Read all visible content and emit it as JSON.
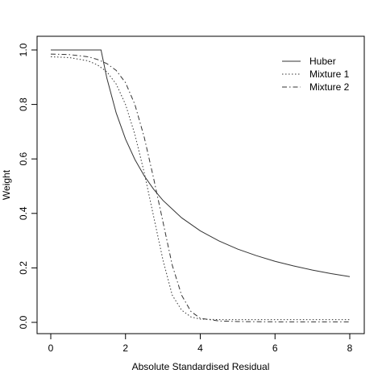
{
  "chart_data": {
    "type": "line",
    "title": "",
    "xlabel": "Absolute Standardised Residual",
    "ylabel": "Weight",
    "xlim": [
      0,
      8
    ],
    "ylim": [
      0,
      1.0
    ],
    "x_ticks": [
      0,
      2,
      4,
      6,
      8
    ],
    "x_tick_labels": [
      "0",
      "2",
      "4",
      "6",
      "8"
    ],
    "y_ticks": [
      0.0,
      0.2,
      0.4,
      0.6,
      0.8,
      1.0
    ],
    "y_tick_labels": [
      "0.0",
      "0.2",
      "0.4",
      "0.6",
      "0.8",
      "1.0"
    ],
    "grid": false,
    "legend_position": "top-right",
    "series": [
      {
        "name": "Huber",
        "color": "#333333",
        "dash": "solid",
        "x": [
          0,
          0.5,
          1.0,
          1.345,
          1.5,
          1.75,
          2.0,
          2.25,
          2.5,
          2.75,
          3.0,
          3.5,
          4.0,
          4.5,
          5.0,
          5.5,
          6.0,
          6.5,
          7.0,
          7.5,
          8.0
        ],
        "y": [
          1.0,
          1.0,
          1.0,
          1.0,
          0.897,
          0.769,
          0.673,
          0.598,
          0.538,
          0.489,
          0.448,
          0.384,
          0.336,
          0.299,
          0.269,
          0.245,
          0.224,
          0.207,
          0.192,
          0.179,
          0.168
        ]
      },
      {
        "name": "Mixture 1",
        "color": "#333333",
        "dash": "dotted",
        "x": [
          0,
          0.5,
          1.0,
          1.25,
          1.5,
          1.75,
          2.0,
          2.25,
          2.5,
          2.75,
          3.0,
          3.25,
          3.5,
          3.75,
          4.0,
          4.5,
          5.0,
          6.0,
          7.0,
          8.0
        ],
        "y": [
          0.975,
          0.972,
          0.96,
          0.945,
          0.92,
          0.875,
          0.8,
          0.69,
          0.55,
          0.39,
          0.23,
          0.1,
          0.045,
          0.02,
          0.012,
          0.01,
          0.01,
          0.01,
          0.01,
          0.01
        ]
      },
      {
        "name": "Mixture 2",
        "color": "#333333",
        "dash": "dotdash",
        "x": [
          0,
          0.5,
          1.0,
          1.25,
          1.5,
          1.75,
          2.0,
          2.25,
          2.5,
          2.75,
          3.0,
          3.25,
          3.5,
          3.75,
          4.0,
          4.5,
          5.0,
          6.0,
          7.0,
          8.0
        ],
        "y": [
          0.985,
          0.983,
          0.975,
          0.965,
          0.95,
          0.925,
          0.88,
          0.8,
          0.68,
          0.53,
          0.37,
          0.21,
          0.1,
          0.04,
          0.015,
          0.005,
          0.003,
          0.002,
          0.002,
          0.002
        ]
      }
    ]
  }
}
